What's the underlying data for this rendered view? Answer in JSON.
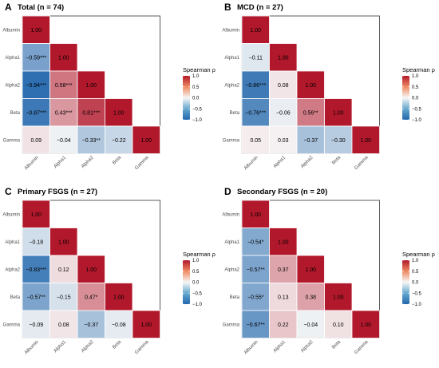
{
  "figure": {
    "legend_title": "Spearman ρ",
    "legend_ticks": [
      "1.0",
      "0.5",
      "0.0",
      "−0.5",
      "−1.0"
    ],
    "legend_tick_values": [
      1.0,
      0.5,
      0.0,
      -0.5,
      -1.0
    ]
  },
  "colors": {
    "negative": "#2166ac",
    "neutral": "#f7f7f7",
    "positive": "#b2182b",
    "axis_text": "#4d4d4d",
    "panel_border": "#333333"
  },
  "chart_data": [
    {
      "type": "heatmap",
      "panel": "A",
      "title": "Total (n = 74)",
      "variables": [
        "Albumin",
        "Alpha1",
        "Alpha2",
        "Beta",
        "Gamma"
      ],
      "lower_triangle": [
        [
          1.0
        ],
        [
          -0.59,
          1.0
        ],
        [
          -0.94,
          0.58,
          1.0
        ],
        [
          -0.87,
          0.43,
          0.81,
          1.0
        ],
        [
          0.09,
          -0.04,
          -0.33,
          -0.22,
          1.0
        ]
      ],
      "labels": [
        [
          "1.00"
        ],
        [
          "−0.59***",
          "1.00"
        ],
        [
          "−0.94***",
          "0.58***",
          "1.00"
        ],
        [
          "−0.87***",
          "0.43***",
          "0.81***",
          "1.00"
        ],
        [
          "0.09",
          "−0.04",
          "−0.33**",
          "−0.22",
          "1.00"
        ]
      ],
      "color_scale": [
        -1,
        1
      ]
    },
    {
      "type": "heatmap",
      "panel": "B",
      "title": "MCD (n = 27)",
      "variables": [
        "Albumin",
        "Alpha1",
        "Alpha2",
        "Beta",
        "Gamma"
      ],
      "lower_triangle": [
        [
          1.0
        ],
        [
          -0.11,
          1.0
        ],
        [
          -0.86,
          0.08,
          1.0
        ],
        [
          -0.76,
          -0.06,
          0.56,
          1.0
        ],
        [
          0.05,
          0.03,
          -0.37,
          -0.3,
          1.0
        ]
      ],
      "labels": [
        [
          "1.00"
        ],
        [
          "−0.11",
          "1.00"
        ],
        [
          "−0.86***",
          "0.08",
          "1.00"
        ],
        [
          "−0.76***",
          "−0.06",
          "0.56**",
          "1.00"
        ],
        [
          "0.05",
          "0.03",
          "−0.37",
          "−0.30",
          "1.00"
        ]
      ],
      "color_scale": [
        -1,
        1
      ]
    },
    {
      "type": "heatmap",
      "panel": "C",
      "title": "Primary FSGS (n = 27)",
      "variables": [
        "Albumin",
        "Alpha1",
        "Alpha2",
        "Beta",
        "Gamma"
      ],
      "lower_triangle": [
        [
          1.0
        ],
        [
          -0.18,
          1.0
        ],
        [
          -0.83,
          0.12,
          1.0
        ],
        [
          -0.57,
          -0.15,
          0.47,
          1.0
        ],
        [
          -0.09,
          0.08,
          -0.37,
          -0.08,
          1.0
        ]
      ],
      "labels": [
        [
          "1.00"
        ],
        [
          "−0.18",
          "1.00"
        ],
        [
          "−0.83***",
          "0.12",
          "1.00"
        ],
        [
          "−0.57**",
          "−0.15",
          "0.47*",
          "1.00"
        ],
        [
          "−0.09",
          "0.08",
          "−0.37",
          "−0.08",
          "1.00"
        ]
      ],
      "color_scale": [
        -1,
        1
      ]
    },
    {
      "type": "heatmap",
      "panel": "D",
      "title": "Secondary FSGS (n = 20)",
      "variables": [
        "Albumin",
        "Alpha1",
        "Alpha2",
        "Beta",
        "Gamma"
      ],
      "lower_triangle": [
        [
          1.0
        ],
        [
          -0.54,
          1.0
        ],
        [
          -0.57,
          0.37,
          1.0
        ],
        [
          -0.55,
          0.13,
          0.38,
          1.0
        ],
        [
          -0.67,
          0.22,
          -0.04,
          0.1,
          1.0
        ]
      ],
      "labels": [
        [
          "1.00"
        ],
        [
          "−0.54*",
          "1.00"
        ],
        [
          "−0.57**",
          "0.37",
          "1.00"
        ],
        [
          "−0.55*",
          "0.13",
          "0.38",
          "1.00"
        ],
        [
          "−0.67**",
          "0.22",
          "−0.04",
          "0.10",
          "1.00"
        ]
      ],
      "color_scale": [
        -1,
        1
      ]
    }
  ]
}
